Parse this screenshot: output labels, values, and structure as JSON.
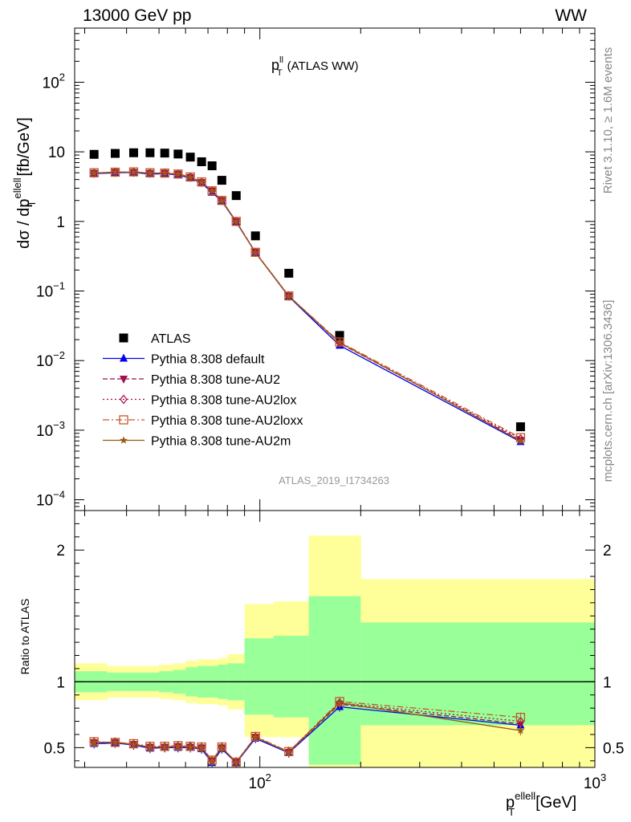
{
  "header": {
    "left": "13000 GeV pp",
    "right": "WW"
  },
  "plot_title": {
    "main": "p",
    "sup": "ll",
    "sub": "T",
    "rest": "(ATLAS WW)"
  },
  "ylabel": {
    "prefix": "dσ / dp",
    "sup": "ellell",
    "sub": "T",
    "units": "[fb/GeV]"
  },
  "xlabel": {
    "main": "p",
    "sup": "ellell",
    "sub": "T",
    "units": "[GeV]"
  },
  "ratio_label": "Ratio to ATLAS",
  "watermark": "ATLAS_2019_I1734263",
  "side_text": {
    "rivet": "Rivet 3.1.10, ≥ 1.6M events",
    "mcplots": "mcplots.cern.ch [arXiv:1306.3436]"
  },
  "chart_data": [
    {
      "type": "scatter",
      "xscale": "log",
      "yscale": "log",
      "xlim": [
        28,
        1000
      ],
      "ylim": [
        7e-05,
        600
      ],
      "y_ticks": [
        {
          "v": 100,
          "label": "10",
          "sup": "2"
        },
        {
          "v": 10,
          "label": "10",
          "sup": ""
        },
        {
          "v": 1,
          "label": "1",
          "sup": ""
        },
        {
          "v": 0.1,
          "label": "10",
          "sup": "−1"
        },
        {
          "v": 0.01,
          "label": "10",
          "sup": "−2"
        },
        {
          "v": 0.001,
          "label": "10",
          "sup": "−3"
        },
        {
          "v": 0.0001,
          "label": "10",
          "sup": "−4"
        }
      ],
      "x": [
        32,
        37,
        42,
        47,
        52,
        57,
        62,
        67,
        72,
        77,
        85,
        97,
        122,
        173,
        600
      ],
      "series": [
        {
          "name": "ATLAS",
          "color": "#000000",
          "marker": "square",
          "line": "none",
          "values": [
            9.2,
            9.5,
            9.7,
            9.7,
            9.6,
            9.3,
            8.4,
            7.2,
            6.3,
            3.9,
            2.35,
            0.62,
            0.18,
            0.023,
            0.00112
          ]
        },
        {
          "name": "Pythia 8.308 default",
          "color": "#0000ee",
          "marker": "triangle",
          "line": "solid",
          "values": [
            4.85,
            5.0,
            5.05,
            4.8,
            4.85,
            4.65,
            4.2,
            3.55,
            2.6,
            1.95,
            0.98,
            0.355,
            0.083,
            0.0165,
            0.00068
          ]
        },
        {
          "name": "Pythia 8.308 tune-AU2",
          "color": "#a50d4f",
          "marker": "triangle-down",
          "line": "dashed",
          "values": [
            4.95,
            5.1,
            5.1,
            4.95,
            4.95,
            4.8,
            4.3,
            3.65,
            2.75,
            2.0,
            1.0,
            0.36,
            0.085,
            0.0178,
            0.00072
          ]
        },
        {
          "name": "Pythia 8.308 tune-AU2lox",
          "color": "#a50d4f",
          "marker": "diamond",
          "line": "dotted",
          "values": [
            4.95,
            5.1,
            5.1,
            4.95,
            4.95,
            4.8,
            4.35,
            3.65,
            2.75,
            2.0,
            1.0,
            0.36,
            0.085,
            0.018,
            0.00075
          ]
        },
        {
          "name": "Pythia 8.308 tune-AU2loxx",
          "color": "#c45a2b",
          "marker": "square-open",
          "line": "dashdot",
          "values": [
            5.0,
            5.1,
            5.15,
            5.0,
            4.95,
            4.8,
            4.35,
            3.7,
            2.75,
            2.0,
            1.0,
            0.36,
            0.085,
            0.0185,
            0.00078
          ]
        },
        {
          "name": "Pythia 8.308 tune-AU2m",
          "color": "#9c5a14",
          "marker": "star",
          "line": "solid",
          "values": [
            4.95,
            5.1,
            5.1,
            4.95,
            4.95,
            4.8,
            4.3,
            3.65,
            2.75,
            1.98,
            0.99,
            0.355,
            0.084,
            0.0182,
            0.0007
          ]
        }
      ],
      "legend_position": "lower-left"
    },
    {
      "type": "scatter",
      "xscale": "log",
      "xlim": [
        28,
        1000
      ],
      "ylim": [
        0.35,
        2.3
      ],
      "y_ticks": [
        {
          "v": 0.5,
          "label": "0.5"
        },
        {
          "v": 1,
          "label": "1"
        },
        {
          "v": 2,
          "label": "2"
        }
      ],
      "x_ticks": [
        {
          "v": 100,
          "label": "10",
          "sup": "2"
        },
        {
          "v": 1000,
          "label": "10",
          "sup": "3"
        }
      ],
      "uncertainty_bands": [
        {
          "x0": 28,
          "x1": 35,
          "stat": [
            0.92,
            1.08
          ],
          "total": [
            0.86,
            1.14
          ]
        },
        {
          "x0": 35,
          "x1": 40,
          "stat": [
            0.93,
            1.07
          ],
          "total": [
            0.88,
            1.12
          ]
        },
        {
          "x0": 40,
          "x1": 45,
          "stat": [
            0.93,
            1.07
          ],
          "total": [
            0.88,
            1.12
          ]
        },
        {
          "x0": 45,
          "x1": 50,
          "stat": [
            0.93,
            1.07
          ],
          "total": [
            0.88,
            1.12
          ]
        },
        {
          "x0": 50,
          "x1": 55,
          "stat": [
            0.92,
            1.08
          ],
          "total": [
            0.87,
            1.13
          ]
        },
        {
          "x0": 55,
          "x1": 60,
          "stat": [
            0.91,
            1.09
          ],
          "total": [
            0.86,
            1.14
          ]
        },
        {
          "x0": 60,
          "x1": 65,
          "stat": [
            0.89,
            1.11
          ],
          "total": [
            0.84,
            1.16
          ]
        },
        {
          "x0": 65,
          "x1": 70,
          "stat": [
            0.88,
            1.12
          ],
          "total": [
            0.83,
            1.17
          ]
        },
        {
          "x0": 70,
          "x1": 75,
          "stat": [
            0.88,
            1.12
          ],
          "total": [
            0.83,
            1.17
          ]
        },
        {
          "x0": 75,
          "x1": 80,
          "stat": [
            0.87,
            1.13
          ],
          "total": [
            0.82,
            1.18
          ]
        },
        {
          "x0": 80,
          "x1": 90,
          "stat": [
            0.86,
            1.14
          ],
          "total": [
            0.79,
            1.21
          ]
        },
        {
          "x0": 90,
          "x1": 110,
          "stat": [
            0.75,
            1.33
          ],
          "total": [
            0.58,
            1.59
          ]
        },
        {
          "x0": 110,
          "x1": 140,
          "stat": [
            0.73,
            1.35
          ],
          "total": [
            0.58,
            1.61
          ]
        },
        {
          "x0": 140,
          "x1": 200,
          "stat": [
            0.37,
            1.65
          ],
          "total": [
            0.34,
            2.11
          ]
        },
        {
          "x0": 200,
          "x1": 1000,
          "stat": [
            0.67,
            1.45
          ],
          "total": [
            0.34,
            1.78
          ]
        }
      ],
      "x": [
        32,
        37,
        42,
        47,
        52,
        57,
        62,
        67,
        72,
        77,
        85,
        97,
        122,
        173,
        600
      ],
      "series": [
        {
          "name": "Pythia 8.308 default",
          "color": "#0000ee",
          "marker": "triangle",
          "line": "solid",
          "values": [
            0.53,
            0.535,
            0.52,
            0.495,
            0.5,
            0.5,
            0.5,
            0.49,
            0.385,
            0.49,
            0.385,
            0.57,
            0.46,
            0.81,
            0.67
          ]
        },
        {
          "name": "Pythia 8.308 tune-AU2",
          "color": "#a50d4f",
          "marker": "triangle-down",
          "line": "dashed",
          "values": [
            0.54,
            0.54,
            0.525,
            0.505,
            0.505,
            0.51,
            0.505,
            0.5,
            0.4,
            0.5,
            0.39,
            0.58,
            0.465,
            0.83,
            0.68
          ]
        },
        {
          "name": "Pythia 8.308 tune-AU2lox",
          "color": "#a50d4f",
          "marker": "diamond",
          "line": "dotted",
          "values": [
            0.54,
            0.54,
            0.525,
            0.505,
            0.505,
            0.51,
            0.51,
            0.5,
            0.4,
            0.5,
            0.39,
            0.58,
            0.47,
            0.84,
            0.7
          ]
        },
        {
          "name": "Pythia 8.308 tune-AU2loxx",
          "color": "#c45a2b",
          "marker": "square-open",
          "line": "dashdot",
          "values": [
            0.545,
            0.54,
            0.53,
            0.51,
            0.51,
            0.515,
            0.51,
            0.505,
            0.405,
            0.505,
            0.39,
            0.585,
            0.47,
            0.85,
            0.73
          ]
        },
        {
          "name": "Pythia 8.308 tune-AU2m",
          "color": "#9c5a14",
          "marker": "star",
          "line": "solid",
          "values": [
            0.54,
            0.54,
            0.525,
            0.505,
            0.505,
            0.51,
            0.505,
            0.5,
            0.4,
            0.5,
            0.39,
            0.58,
            0.465,
            0.84,
            0.63
          ]
        }
      ]
    }
  ]
}
